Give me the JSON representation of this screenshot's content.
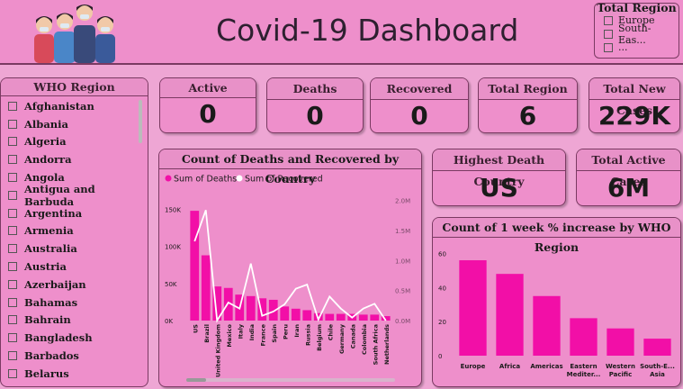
{
  "header": {
    "title": "Covid-19 Dashboard"
  },
  "top_slicer": {
    "title": "Total Region",
    "options": [
      "Europe",
      "South-Eas...",
      "..."
    ]
  },
  "region_slicer": {
    "title": "WHO Region",
    "items": [
      "Afghanistan",
      "Albania",
      "Algeria",
      "Andorra",
      "Angola",
      "Antigua and Barbuda",
      "Argentina",
      "Armenia",
      "Australia",
      "Austria",
      "Azerbaijan",
      "Bahamas",
      "Bahrain",
      "Bangladesh",
      "Barbados",
      "Belarus"
    ]
  },
  "kpis": {
    "active": {
      "label": "Active",
      "value": "0"
    },
    "deaths": {
      "label": "Deaths",
      "value": "0"
    },
    "recovered": {
      "label": "Recovered",
      "value": "0"
    },
    "total_region": {
      "label": "Total Region",
      "value": "6"
    },
    "total_new_cases": {
      "label": "Total New Cases",
      "value": "229K"
    },
    "highest_death_country": {
      "label": "Highest Death Country",
      "value": "US"
    },
    "total_active_cases": {
      "label": "Total Active Cases",
      "value": "6M"
    }
  },
  "colors": {
    "accent": "#f20fa7",
    "line": "#ffffff"
  },
  "chart_data": [
    {
      "type": "bar",
      "title": "Count of Deaths and Recovered by Country",
      "legend": "top-left",
      "categories": [
        "US",
        "Brazil",
        "United Kingdom",
        "Mexico",
        "Italy",
        "India",
        "France",
        "Spain",
        "Peru",
        "Iran",
        "Russia",
        "Belgium",
        "Chile",
        "Germany",
        "Canada",
        "Colombia",
        "South Africa",
        "Netherlands"
      ],
      "series": [
        {
          "name": "Sum of Deaths",
          "type": "bar",
          "values": [
            148000,
            88000,
            46000,
            44000,
            35000,
            33000,
            30000,
            28000,
            19000,
            16000,
            14000,
            10000,
            9000,
            9000,
            9000,
            8000,
            8000,
            6000
          ]
        },
        {
          "name": "Sum of Recovered",
          "type": "line",
          "values": [
            1320000,
            1840000,
            300,
            300000,
            200000,
            950000,
            80000,
            150000,
            270000,
            530000,
            600000,
            17000,
            400000,
            200000,
            50000,
            200000,
            280000,
            100
          ]
        }
      ],
      "y_ticks": [
        "150K",
        "100K",
        "50K",
        "0K"
      ],
      "y2_ticks": [
        "2.0M",
        "1.5M",
        "1.0M",
        "0.5M",
        "0.0M"
      ],
      "ylim": [
        0,
        170000
      ],
      "y2lim": [
        0,
        2100000
      ]
    },
    {
      "type": "bar",
      "title": "Count of 1 week % increase by WHO Region",
      "categories": [
        "Europe",
        "Africa",
        "Americas",
        "Eastern Mediter...",
        "Western Pacific",
        "South-E... Asia"
      ],
      "values": [
        56,
        48,
        35,
        22,
        16,
        10
      ],
      "y_ticks": [
        "60",
        "40",
        "20",
        "0"
      ],
      "ylim": [
        0,
        65
      ]
    }
  ]
}
